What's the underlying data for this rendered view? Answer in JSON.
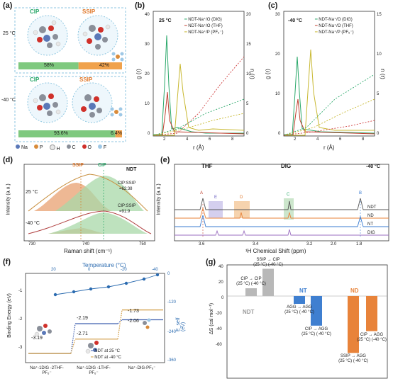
{
  "panel_a": {
    "label": "(a)",
    "rt": {
      "temp": "25 °C",
      "cip": "CIP",
      "ssip": "SSIP",
      "cip_pct": "58%",
      "ssip_pct": "42%",
      "cip_frac": 0.58
    },
    "low": {
      "temp": "-40 °C",
      "cip": "CIP",
      "ssip": "SSIP",
      "cip_pct": "93.6%",
      "ssip_pct": "6.4%",
      "cip_frac": 0.936
    },
    "legend": [
      {
        "sym": "Na",
        "color": "#5a78b8"
      },
      {
        "sym": "P",
        "color": "#d98b3a"
      },
      {
        "sym": "H",
        "color": "#e8e8e8"
      },
      {
        "sym": "C",
        "color": "#8a8f99"
      },
      {
        "sym": "O",
        "color": "#d0302a"
      },
      {
        "sym": "F",
        "color": "#9ec8e6"
      }
    ]
  },
  "panel_b": {
    "label": "(b)",
    "temp": "25 °C",
    "ylabel_left": "g (r)",
    "ylabel_right": "n (r)",
    "xlabel": "r (Å)",
    "xticks": [
      "2",
      "4",
      "6",
      "8"
    ],
    "yticks_left": [
      "0",
      "10",
      "20",
      "30",
      "40"
    ],
    "yticks_right": [
      "0",
      "5",
      "10",
      "15",
      "20"
    ],
    "legend": [
      "NDT-Na⁺/O (DIG)",
      "NDT-Na⁺/O (THF)",
      "NDT-Na⁺/P (PF₆⁻)"
    ]
  },
  "panel_c": {
    "label": "(c)",
    "temp": "-40 °C",
    "ylabel_left": "g (r)",
    "ylabel_right": "n (r)",
    "xlabel": "r (Å)",
    "xticks": [
      "2",
      "4",
      "6",
      "8"
    ],
    "yticks_left": [
      "0",
      "10",
      "20",
      "30"
    ],
    "yticks_right": [
      "0",
      "5",
      "10",
      "15"
    ],
    "legend": [
      "NDT-Na⁺/O (DIG)",
      "NDT-Na⁺/O (THF)",
      "NDT-Na⁺/P (PF₆⁻)"
    ]
  },
  "panel_d": {
    "label": "(d)",
    "ylabel": "Intensity (a.u.)",
    "xlabel": "Raman shift (cm⁻¹)",
    "xticks": [
      "730",
      "740",
      "750"
    ],
    "tag": "NDT",
    "ssip": "SSIP",
    "cip": "CIP",
    "rt_temp": "25 °C",
    "low_temp": "-40 °C",
    "ratio1_title": "CIP:SSIP",
    "ratio1_val": "=62:38",
    "ratio2_title": "CIP:SSIP",
    "ratio2_val": "=91:9"
  },
  "panel_e": {
    "label": "(e)",
    "ylabel": "Intensity (a.u.)",
    "xlabel": "¹H Chemical Shift (ppm)",
    "xticks": [
      "3.6",
      "3.4",
      "3.2",
      "2.0",
      "1.8"
    ],
    "temp": "-40 °C",
    "thf": "THF",
    "dig": "DIG",
    "peaks": [
      "A",
      "E",
      "D",
      "C",
      "B"
    ],
    "traces": [
      "NDT",
      "ND",
      "NT",
      "DIG"
    ]
  },
  "panel_f": {
    "label": "(f)",
    "ylabel": "Binding Energy (eV)",
    "top_axis_label": "Temperature (°C)",
    "top_ticks": [
      "20",
      "0",
      "-20",
      "-40"
    ],
    "right_label": "E_self (eV)",
    "right_ticks": [
      "0",
      "-120",
      "-240",
      "-360"
    ],
    "left_ticks": [
      "-1",
      "-2",
      "-3"
    ],
    "values": {
      "rt": [
        "-3.19",
        "-2.19",
        "-2.06"
      ],
      "low": [
        "-2.71",
        "-1.73"
      ]
    },
    "xcats": [
      "Na⁺-1DIG -2THF-PF₆⁻",
      "Na⁺-1DIG -1THF-PF₆⁻",
      "Na⁺-DIG-PF₆⁻"
    ],
    "legend": [
      "NDT at 25 °C",
      "NDT at -40 °C"
    ]
  },
  "panel_g": {
    "label": "(g)",
    "ylabel": "ΔS (cal mol⁻¹)",
    "yticks": [
      "40",
      "20",
      "0",
      "-20",
      "-40",
      "-60"
    ],
    "groups": [
      "NDT",
      "NT",
      "ND"
    ],
    "bars": [
      {
        "group": "NDT",
        "label": "CIP → CIP",
        "sub": "(25 °C) (-40 °C)",
        "value": 10,
        "color": "#b8b8b8"
      },
      {
        "group": "NDT",
        "label": "SSIP → CIP",
        "sub": "(25 °C) (-40 °C)",
        "value": 35,
        "color": "#b8b8b8"
      },
      {
        "group": "NT",
        "label": "AGG → AGG",
        "sub": "(25 °C) (-40 °C)",
        "value": -10,
        "color": "#3f7fd0"
      },
      {
        "group": "NT",
        "label": "CIP → AGG",
        "sub": "(25 °C) (-40 °C)",
        "value": -38,
        "color": "#3f7fd0"
      },
      {
        "group": "ND",
        "label": "SSIP → AGG",
        "sub": "(25 °C) (-40 °C)",
        "value": -73,
        "color": "#e8833a"
      },
      {
        "group": "ND",
        "label": "CIP → AGG",
        "sub": "(25 °C) (-40 °C)",
        "value": -45,
        "color": "#e8833a"
      }
    ]
  }
}
